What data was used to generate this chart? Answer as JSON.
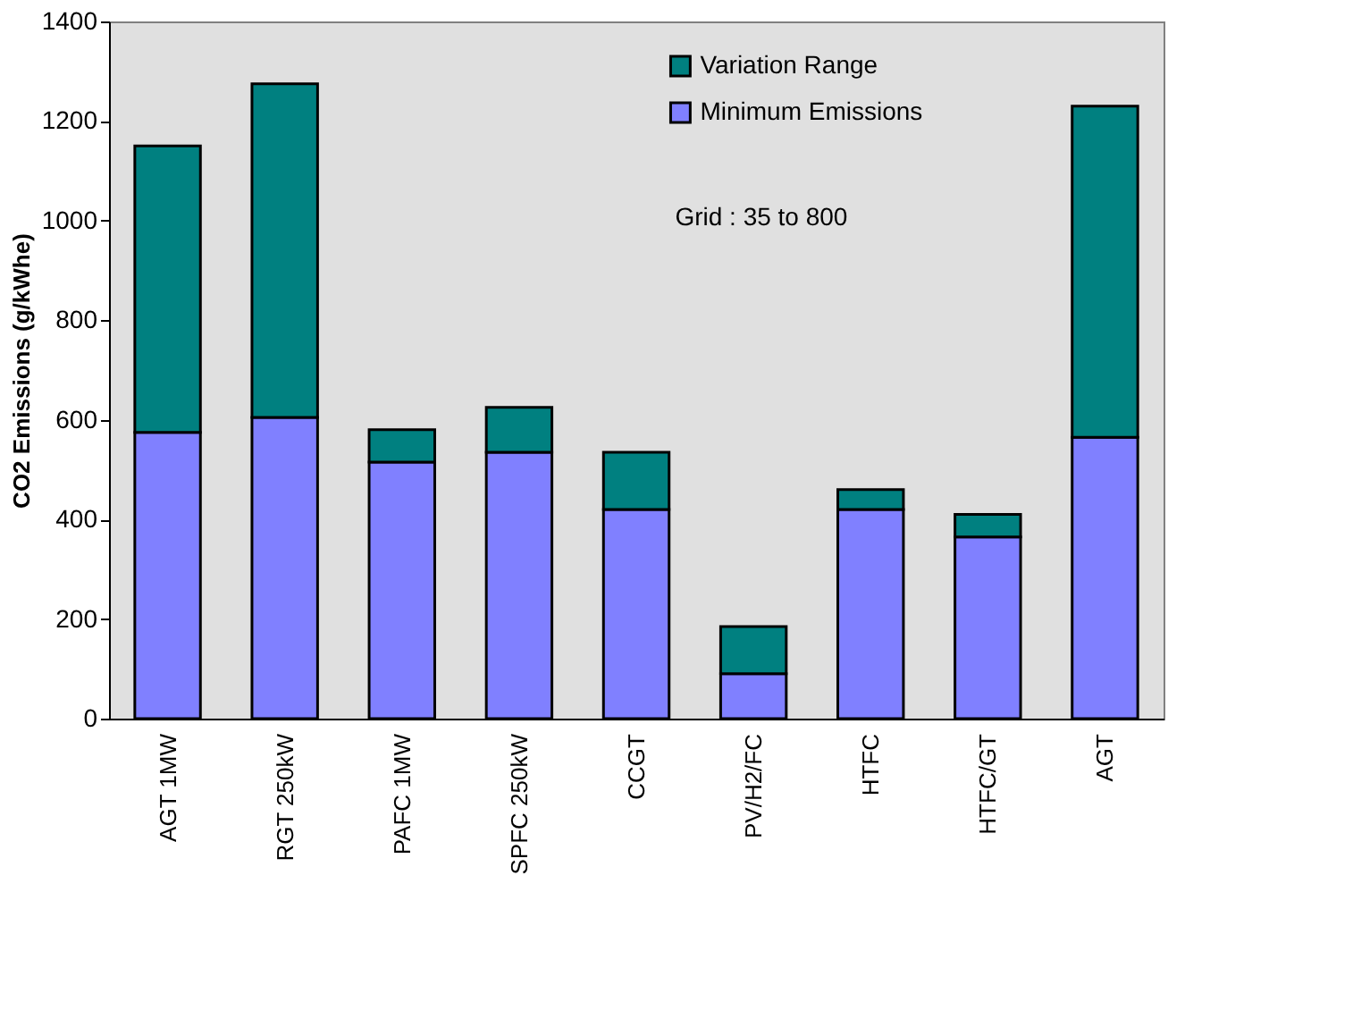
{
  "chart_data": {
    "type": "bar",
    "stacked": true,
    "ylabel": "CO2 Emissions (g/kWhe)",
    "categories": [
      "AGT 1MW",
      "RGT 250kW",
      "PAFC 1MW",
      "SPFC 250kW",
      "CCGT",
      "PV/H2/FC",
      "HTFC",
      "HTFC/GT",
      "AGT"
    ],
    "series": [
      {
        "name": "Minimum Emissions",
        "color": "#8080ff",
        "values": [
          575,
          605,
          515,
          535,
          420,
          90,
          420,
          365,
          565
        ]
      },
      {
        "name": "Variation Range",
        "color": "#008080",
        "values": [
          575,
          670,
          65,
          90,
          115,
          95,
          40,
          45,
          665
        ]
      }
    ],
    "ylim": [
      0,
      1400
    ],
    "yticks": [
      0,
      200,
      400,
      600,
      800,
      1000,
      1200,
      1400
    ],
    "grid": false,
    "legend": "top right",
    "annotations": [
      "Grid : 35 to 800"
    ]
  }
}
